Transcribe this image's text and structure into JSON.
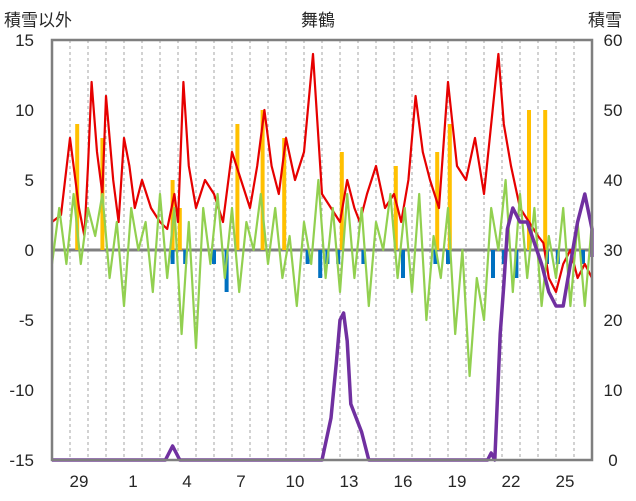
{
  "chart_data": {
    "type": "line",
    "title": "舞鶴",
    "left_axis_label": "積雪以外",
    "right_axis_label": "積雪",
    "left_ylim": [
      -15,
      15
    ],
    "left_yticks": [
      "15",
      "10",
      "5",
      "0",
      "-5",
      "-10",
      "-15"
    ],
    "right_ylim": [
      0,
      60
    ],
    "right_yticks": [
      "60",
      "50",
      "40",
      "30",
      "20",
      "10",
      "0"
    ],
    "x_range_days": [
      0,
      30
    ],
    "x_tick_labels": [
      "29",
      "1",
      "4",
      "7",
      "10",
      "13",
      "16",
      "19",
      "22",
      "25"
    ],
    "x_tick_positions": [
      1.5,
      4.5,
      7.5,
      10.5,
      13.5,
      16.5,
      19.5,
      22.5,
      25.5,
      28.5
    ],
    "grid": "vertical-dashed",
    "colors": {
      "red": "#e60000",
      "orange": "#ffc000",
      "blue": "#0070c0",
      "green": "#92d050",
      "purple": "#7030a0",
      "axis": "#7f7f7f",
      "grid": "#a6a6a6",
      "zero": "#808080"
    },
    "red_series": {
      "x": [
        0,
        0.5,
        1,
        1.3,
        1.5,
        1.8,
        2,
        2.2,
        2.5,
        2.8,
        3,
        3.4,
        3.7,
        4,
        4.3,
        4.6,
        5,
        5.5,
        6,
        6.4,
        6.8,
        7,
        7.3,
        7.6,
        8,
        8.5,
        9,
        9.5,
        10,
        10.5,
        11,
        11.4,
        11.8,
        12.2,
        12.6,
        13,
        13.5,
        14,
        14.5,
        15,
        15.5,
        16,
        16.4,
        16.8,
        17.1,
        17.5,
        18,
        18.5,
        19,
        19.4,
        19.8,
        20.2,
        20.6,
        21,
        21.5,
        22,
        22.5,
        23,
        23.5,
        24,
        24.4,
        24.8,
        25.1,
        25.5,
        26,
        26.5,
        27,
        27.3,
        27.6,
        28,
        28.4,
        28.8,
        29.2,
        29.6,
        30
      ],
      "y": [
        2,
        2.5,
        8,
        5,
        3,
        1,
        6,
        12,
        7,
        4,
        11,
        5,
        2,
        8,
        6,
        3,
        5,
        3,
        2,
        1.5,
        4,
        2,
        12,
        6,
        3,
        5,
        4,
        2,
        7,
        5,
        3,
        6,
        10,
        6,
        4,
        8,
        5,
        7,
        14,
        4,
        3,
        2,
        5,
        3,
        2,
        4,
        6,
        3,
        4,
        2,
        5,
        11,
        7,
        5,
        3,
        12,
        6,
        5,
        8,
        4,
        9,
        14,
        9,
        6,
        3,
        2,
        1,
        0.5,
        -2,
        -3,
        -1,
        0,
        -2,
        -1,
        -2
      ]
    },
    "orange_series": {
      "x": [
        1.4,
        2.8,
        6.7,
        7.1,
        10.3,
        11.7,
        12.9,
        16.1,
        19.1,
        21.4,
        22.1,
        26.5,
        27.4
      ],
      "y": [
        9,
        8,
        5,
        3,
        9,
        10,
        8,
        7,
        6,
        7,
        9,
        10,
        10
      ]
    },
    "blue_series": {
      "x": [
        6.7,
        7.4,
        9.0,
        9.7,
        14.2,
        14.9,
        15.3,
        15.9,
        17.3,
        19.5,
        21.3,
        22.0,
        24.5,
        25.1,
        25.8,
        27.5,
        28.1,
        29.5
      ],
      "y": [
        -1,
        -1,
        -1,
        -3,
        -1,
        -2,
        -1,
        -1,
        -1,
        -2,
        -1,
        -1,
        -2,
        -1,
        -2,
        -1,
        -1,
        -1
      ]
    },
    "green_series": {
      "x": [
        0,
        0.4,
        0.8,
        1.2,
        1.6,
        2,
        2.4,
        2.8,
        3.2,
        3.6,
        4,
        4.4,
        4.8,
        5.2,
        5.6,
        6,
        6.4,
        6.8,
        7.2,
        7.6,
        8,
        8.4,
        8.8,
        9.2,
        9.6,
        10,
        10.4,
        10.8,
        11.2,
        11.6,
        12,
        12.4,
        12.8,
        13.2,
        13.6,
        14,
        14.4,
        14.8,
        15.2,
        15.6,
        16,
        16.4,
        16.8,
        17.2,
        17.6,
        18,
        18.4,
        18.8,
        19.2,
        19.6,
        20,
        20.4,
        20.8,
        21.2,
        21.6,
        22,
        22.4,
        22.8,
        23.2,
        23.6,
        24,
        24.4,
        24.8,
        25.2,
        25.6,
        26,
        26.4,
        26.8,
        27.2,
        27.6,
        28,
        28.4,
        28.8,
        29.2,
        29.6,
        30
      ],
      "y": [
        -1,
        3,
        -1,
        4,
        -1,
        3,
        1,
        4,
        -2,
        2,
        -4,
        3,
        0,
        2,
        -3,
        4,
        -2,
        3,
        -6,
        2,
        -7,
        3,
        -1,
        4,
        -2,
        3,
        -3,
        2,
        0,
        4,
        -1,
        3,
        -2,
        1,
        -4,
        2,
        -1,
        5,
        -2,
        3,
        -3,
        4,
        -2,
        3,
        -4,
        2,
        0,
        4,
        -2,
        3,
        -3,
        4,
        -5,
        1,
        -2,
        3,
        -6,
        0,
        -9,
        -2,
        -5,
        3,
        0,
        5,
        -3,
        4,
        -2,
        3,
        -4,
        1,
        -2,
        3,
        -4,
        2,
        -4,
        2
      ]
    },
    "purple_series": {
      "axis": "right",
      "x": [
        0,
        6.3,
        6.5,
        6.7,
        6.9,
        7.1,
        15.0,
        15.5,
        15.8,
        16.0,
        16.2,
        16.4,
        16.6,
        17.2,
        17.6,
        18.0,
        18.1,
        24.2,
        24.4,
        24.6,
        24.9,
        25.1,
        25.3,
        25.6,
        26.0,
        26.4,
        26.8,
        27.2,
        27.6,
        28.0,
        28.4,
        28.8,
        29.2,
        29.6,
        30.0,
        30.0
      ],
      "y": [
        0,
        0,
        1,
        2,
        1,
        0,
        0,
        6,
        14,
        20,
        21,
        17,
        8,
        4,
        0,
        0,
        0,
        0,
        1,
        0,
        18,
        25,
        33,
        36,
        34,
        34,
        31,
        28,
        24,
        22,
        22,
        28,
        34,
        38,
        33,
        29
      ]
    }
  }
}
